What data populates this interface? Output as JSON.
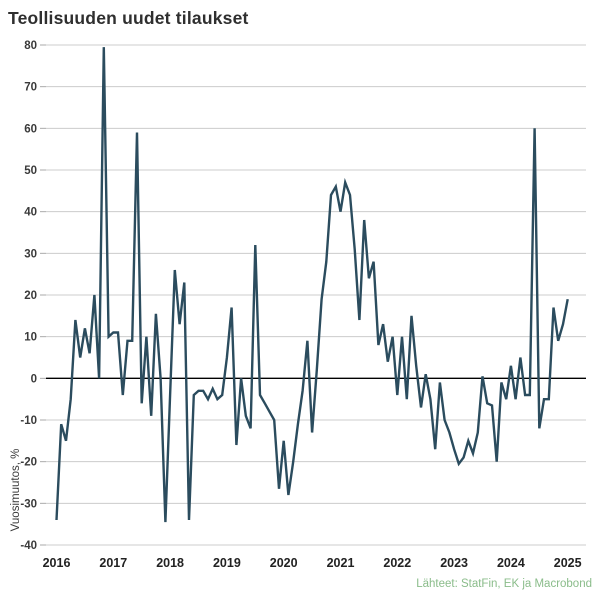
{
  "title": "Teollisuuden uudet tilaukset",
  "source": "Lähteet: StatFin, EK ja Macrobond",
  "colors": {
    "line": "#2b4c5e",
    "grid": "#cccccc",
    "tick": "#aaaaaa",
    "zero_line": "#000000",
    "title_text": "#2f2f2f",
    "axis_text": "#3a3a3a",
    "source_text": "#8abc8a",
    "background": "#ffffff"
  },
  "chart_data": {
    "type": "line",
    "title": "Teollisuuden uudet tilaukset",
    "ylabel": "Vuosimuutos, %",
    "source": "Lähteet: StatFin, EK ja Macrobond",
    "grid": "horizontal",
    "zero_line": true,
    "legend": "none",
    "ylim": [
      -40,
      80
    ],
    "y_ticks": [
      80,
      70,
      60,
      50,
      40,
      30,
      20,
      10,
      0,
      -10,
      -20,
      -30,
      -40
    ],
    "x_tick_labels": [
      "2016",
      "2017",
      "2018",
      "2019",
      "2020",
      "2021",
      "2022",
      "2023",
      "2024",
      "2025"
    ],
    "x_start": {
      "year": 2016,
      "month": 1
    },
    "frequency": "monthly",
    "series": [
      {
        "name": "Teollisuuden uudet tilaukset, vuosimuutos %",
        "color": "#2b4c5e",
        "values": [
          -34,
          -11,
          -15,
          -5,
          14,
          5,
          12,
          6,
          20,
          0,
          79.5,
          10,
          11,
          11,
          -4,
          9,
          9,
          59,
          -6,
          10,
          -9,
          15.5,
          0,
          -34.5,
          -4,
          26,
          13,
          23,
          -34,
          -4,
          -3,
          -3,
          -5,
          -2.5,
          -5,
          -4,
          5,
          17,
          -16,
          0,
          -9,
          -12,
          32,
          -4,
          -6,
          -8,
          -10,
          -26.5,
          -15,
          -28,
          -20,
          -11,
          -3,
          9,
          -13,
          2,
          19,
          28,
          44,
          46,
          40,
          47,
          44,
          31,
          14,
          38,
          24,
          28,
          8,
          13,
          4,
          10,
          -4,
          10,
          -5,
          15,
          3,
          -7,
          1,
          -5,
          -17,
          -1,
          -10,
          -13,
          -17,
          -20.5,
          -19,
          -15,
          -18,
          -13,
          0.5,
          -6,
          -6.5,
          -20,
          -1,
          -5,
          3,
          -5,
          5,
          -4,
          -4,
          60,
          -12,
          -5,
          -5,
          17,
          9,
          13,
          19
        ]
      }
    ]
  }
}
